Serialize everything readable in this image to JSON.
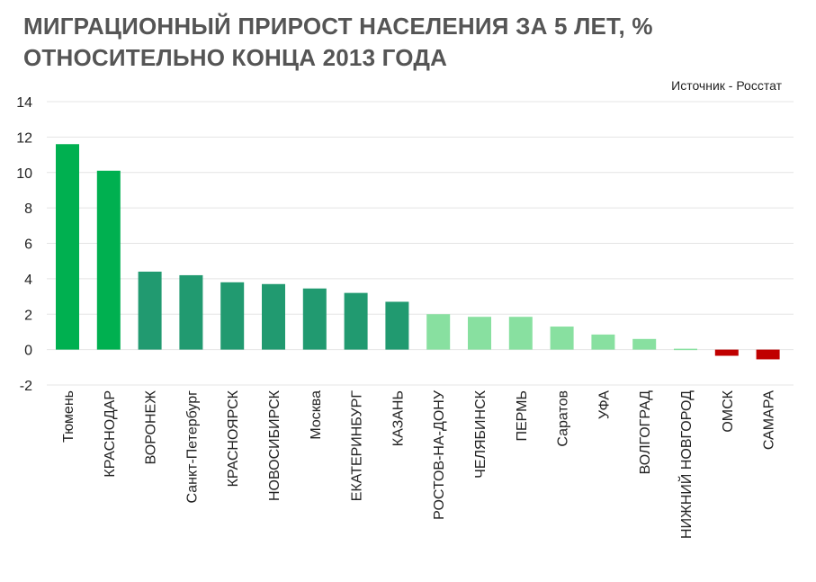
{
  "header": {
    "title_line1": "МИГРАЦИОННЫЙ ПРИРОСТ НАСЕЛЕНИЯ ЗА 5 ЛЕТ, %",
    "title_line2": "ОТНОСИТЕЛЬНО КОНЦА 2013 ГОДА",
    "source": "Источник - Росстат"
  },
  "colors": {
    "dark_green": "#00B050",
    "teal_green": "#219A70",
    "light_green": "#88E0A0",
    "red": "#C00000",
    "grid": "#E4E4E4",
    "title": "#555555"
  },
  "chart_data": {
    "type": "bar",
    "title": "МИГРАЦИОННЫЙ ПРИРОСТ НАСЕЛЕНИЯ ЗА 5 ЛЕТ, % ОТНОСИТЕЛЬНО КОНЦА 2013 ГОДА",
    "xlabel": "",
    "ylabel": "",
    "ylim": [
      -2,
      14
    ],
    "yticks": [
      -2,
      0,
      2,
      4,
      6,
      8,
      10,
      12,
      14
    ],
    "grid": true,
    "categories": [
      "Тюмень",
      "КРАСНОДАР",
      "ВОРОНЕЖ",
      "Санкт-Петербург",
      "КРАСНОЯРСК",
      "НОВОСИБИРСК",
      "Москва",
      "ЕКАТЕРИНБУРГ",
      "КАЗАНЬ",
      "РОСТОВ-НА-ДОНУ",
      "ЧЕЛЯБИНСК",
      "ПЕРМЬ",
      "Саратов",
      "УФА",
      "ВОЛГОГРАД",
      "НИЖНИЙ НОВГОРОД",
      "ОМСК",
      "САМАРА"
    ],
    "values": [
      11.6,
      10.1,
      4.4,
      4.2,
      3.8,
      3.7,
      3.45,
      3.2,
      2.7,
      2.0,
      1.85,
      1.85,
      1.3,
      0.85,
      0.6,
      0.05,
      -0.35,
      -0.55
    ],
    "bar_colors": [
      "#00B050",
      "#00B050",
      "#219A70",
      "#219A70",
      "#219A70",
      "#219A70",
      "#219A70",
      "#219A70",
      "#219A70",
      "#88E0A0",
      "#88E0A0",
      "#88E0A0",
      "#88E0A0",
      "#88E0A0",
      "#88E0A0",
      "#88E0A0",
      "#C00000",
      "#C00000"
    ]
  }
}
